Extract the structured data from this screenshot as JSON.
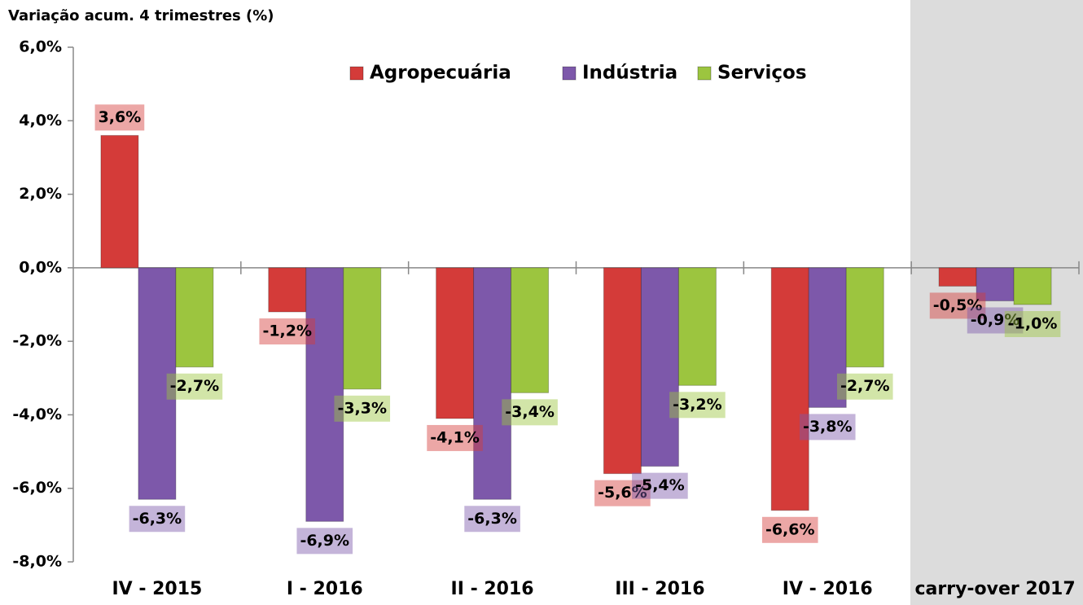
{
  "chart_data": {
    "type": "bar",
    "ylabel": "Variação acum. 4 trimestres (%)",
    "categories": [
      "IV - 2015",
      "I - 2016",
      "II - 2016",
      "III - 2016",
      "IV - 2016",
      "carry-over 2017"
    ],
    "series": [
      {
        "name": "Agropecuária",
        "color": "#d43b39",
        "values": [
          3.6,
          -1.2,
          -4.1,
          -5.6,
          -6.6,
          -0.5
        ],
        "value_labels": [
          "3,6%",
          "-1,2%",
          "-4,1%",
          "-5,6%",
          "-6,6%",
          "-0,5%"
        ]
      },
      {
        "name": "Indústria",
        "color": "#7d58aa",
        "values": [
          -6.3,
          -6.9,
          -6.3,
          -5.4,
          -3.8,
          -0.9
        ],
        "value_labels": [
          "-6,3%",
          "-6,9%",
          "-6,3%",
          "-5,4%",
          "-3,8%",
          "-0,9%"
        ]
      },
      {
        "name": "Serviços",
        "color": "#9cc53f",
        "values": [
          -2.7,
          -3.3,
          -3.4,
          -3.2,
          -2.7,
          -1.0
        ],
        "value_labels": [
          "-2,7%",
          "-3,3%",
          "-3,4%",
          "-3,2%",
          "-2,7%",
          "-1,0%"
        ]
      }
    ],
    "ylim": [
      -8,
      6
    ],
    "yticks": [
      {
        "value": -8,
        "label": "-8,0%"
      },
      {
        "value": -6,
        "label": "-6,0%"
      },
      {
        "value": -4,
        "label": "-4,0%"
      },
      {
        "value": -2,
        "label": "-2,0%"
      },
      {
        "value": 0,
        "label": "0,0%"
      },
      {
        "value": 2,
        "label": "2,0%"
      },
      {
        "value": 4,
        "label": "4,0%"
      },
      {
        "value": 6,
        "label": "6,0%"
      }
    ],
    "grid": false,
    "legend": "top"
  }
}
